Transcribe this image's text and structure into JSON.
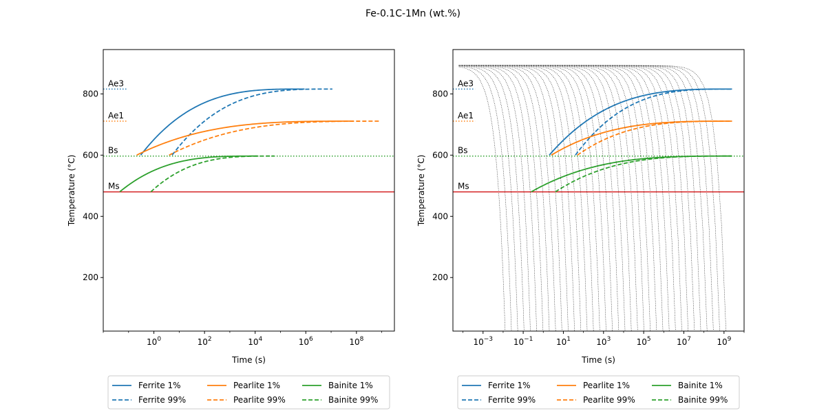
{
  "suptitle": "Fe-0.1C-1Mn (wt.%)",
  "colors": {
    "ferrite": "#1f77b4",
    "pearlite": "#ff7f0e",
    "bainite": "#2ca02c",
    "ms": "#d62728",
    "cooling": "#000000"
  },
  "chart_data": [
    {
      "type": "line",
      "title": "",
      "xlabel": "Time (s)",
      "ylabel": "Temperature (°C)",
      "xscale": "log",
      "xlim_log10": [
        -2.0,
        9.5
      ],
      "ylim": [
        25,
        945
      ],
      "xticks": [
        {
          "exp": 0,
          "label": "10^0"
        },
        {
          "exp": 2,
          "label": "10^2"
        },
        {
          "exp": 4,
          "label": "10^4"
        },
        {
          "exp": 6,
          "label": "10^6"
        },
        {
          "exp": 8,
          "label": "10^8"
        }
      ],
      "yticks": [
        200,
        400,
        600,
        800
      ],
      "hlines": [
        {
          "name": "Ae3",
          "y": 816,
          "style": "dotted",
          "color_key": "ferrite",
          "x_end_log10": -1.05
        },
        {
          "name": "Ae1",
          "y": 711,
          "style": "dotted",
          "color_key": "pearlite",
          "x_end_log10": -1.05
        },
        {
          "name": "Bs",
          "y": 597,
          "style": "dotted",
          "color_key": "bainite",
          "full": true
        },
        {
          "name": "Ms",
          "y": 480,
          "style": "solid",
          "color_key": "ms",
          "full": true
        }
      ],
      "curves": [
        {
          "name": "Ferrite 1%",
          "color_key": "ferrite",
          "dash": false,
          "t_start_log10": -0.52,
          "t_end_log10": 5.95,
          "T_start": 600,
          "T_end": 816
        },
        {
          "name": "Ferrite 99%",
          "color_key": "ferrite",
          "dash": true,
          "t_start_log10": 0.72,
          "t_end_log10": 7.05,
          "T_start": 600,
          "T_end": 816
        },
        {
          "name": "Pearlite 1%",
          "color_key": "pearlite",
          "dash": false,
          "t_start_log10": -0.68,
          "t_end_log10": 7.9,
          "T_start": 600,
          "T_end": 711
        },
        {
          "name": "Pearlite 99%",
          "color_key": "pearlite",
          "dash": true,
          "t_start_log10": 0.6,
          "t_end_log10": 8.9,
          "T_start": 600,
          "T_end": 711
        },
        {
          "name": "Bainite 1%",
          "color_key": "bainite",
          "dash": false,
          "t_start_log10": -1.35,
          "t_end_log10": 4.1,
          "T_start": 480,
          "T_end": 597
        },
        {
          "name": "Bainite 99%",
          "color_key": "bainite",
          "dash": true,
          "t_start_log10": -0.12,
          "t_end_log10": 4.75,
          "T_start": 480,
          "T_end": 597
        }
      ],
      "legend": {
        "placement": "below",
        "ncol": 3,
        "entries": [
          "Ferrite 1%",
          "Pearlite 1%",
          "Bainite 1%",
          "Ferrite 99%",
          "Pearlite 99%",
          "Bainite 99%"
        ]
      }
    },
    {
      "type": "line",
      "title": "",
      "xlabel": "Time (s)",
      "ylabel": "Temperature (°C)",
      "xscale": "log",
      "xlim_log10": [
        -4.5,
        10.0
      ],
      "ylim": [
        25,
        945
      ],
      "xticks": [
        {
          "exp": -3,
          "label": "10^-3"
        },
        {
          "exp": -1,
          "label": "10^-1"
        },
        {
          "exp": 1,
          "label": "10^1"
        },
        {
          "exp": 3,
          "label": "10^3"
        },
        {
          "exp": 5,
          "label": "10^5"
        },
        {
          "exp": 7,
          "label": "10^7"
        },
        {
          "exp": 9,
          "label": "10^9"
        }
      ],
      "yticks": [
        200,
        400,
        600,
        800
      ],
      "hlines": [
        {
          "name": "Ae3",
          "y": 816,
          "style": "dotted",
          "color_key": "ferrite",
          "x_end_log10": -3.4
        },
        {
          "name": "Ae1",
          "y": 711,
          "style": "dotted",
          "color_key": "pearlite",
          "x_end_log10": -3.4
        },
        {
          "name": "Bs",
          "y": 597,
          "style": "dotted",
          "color_key": "bainite",
          "full": true
        },
        {
          "name": "Ms",
          "y": 480,
          "style": "solid",
          "color_key": "ms",
          "full": true
        }
      ],
      "curves": [
        {
          "name": "Ferrite 1%",
          "color_key": "ferrite",
          "dash": false,
          "t_start_log10": 0.3,
          "t_end_log10": 9.4,
          "T_start": 600,
          "T_end": 816
        },
        {
          "name": "Ferrite 99%",
          "color_key": "ferrite",
          "dash": true,
          "t_start_log10": 1.6,
          "t_end_log10": 9.4,
          "T_start": 600,
          "T_end": 816
        },
        {
          "name": "Pearlite 1%",
          "color_key": "pearlite",
          "dash": false,
          "t_start_log10": 0.4,
          "t_end_log10": 9.4,
          "T_start": 600,
          "T_end": 711
        },
        {
          "name": "Pearlite 99%",
          "color_key": "pearlite",
          "dash": true,
          "t_start_log10": 1.7,
          "t_end_log10": 9.4,
          "T_start": 600,
          "T_end": 711
        },
        {
          "name": "Bainite 1%",
          "color_key": "bainite",
          "dash": false,
          "t_start_log10": -0.6,
          "t_end_log10": 9.4,
          "T_start": 480,
          "T_end": 597
        },
        {
          "name": "Bainite 99%",
          "color_key": "bainite",
          "dash": true,
          "t_start_log10": 0.6,
          "t_end_log10": 9.4,
          "T_start": 480,
          "T_end": 597
        }
      ],
      "cooling_curves": {
        "count": 36,
        "T0": 893,
        "T_final": 25,
        "t_end_first_log10": -1.9,
        "t_end_last_log10": 9.1,
        "plateau_start_log10": -4.2
      },
      "legend": {
        "placement": "below",
        "ncol": 3,
        "entries": [
          "Ferrite 1%",
          "Pearlite 1%",
          "Bainite 1%",
          "Ferrite 99%",
          "Pearlite 99%",
          "Bainite 99%"
        ]
      }
    }
  ]
}
